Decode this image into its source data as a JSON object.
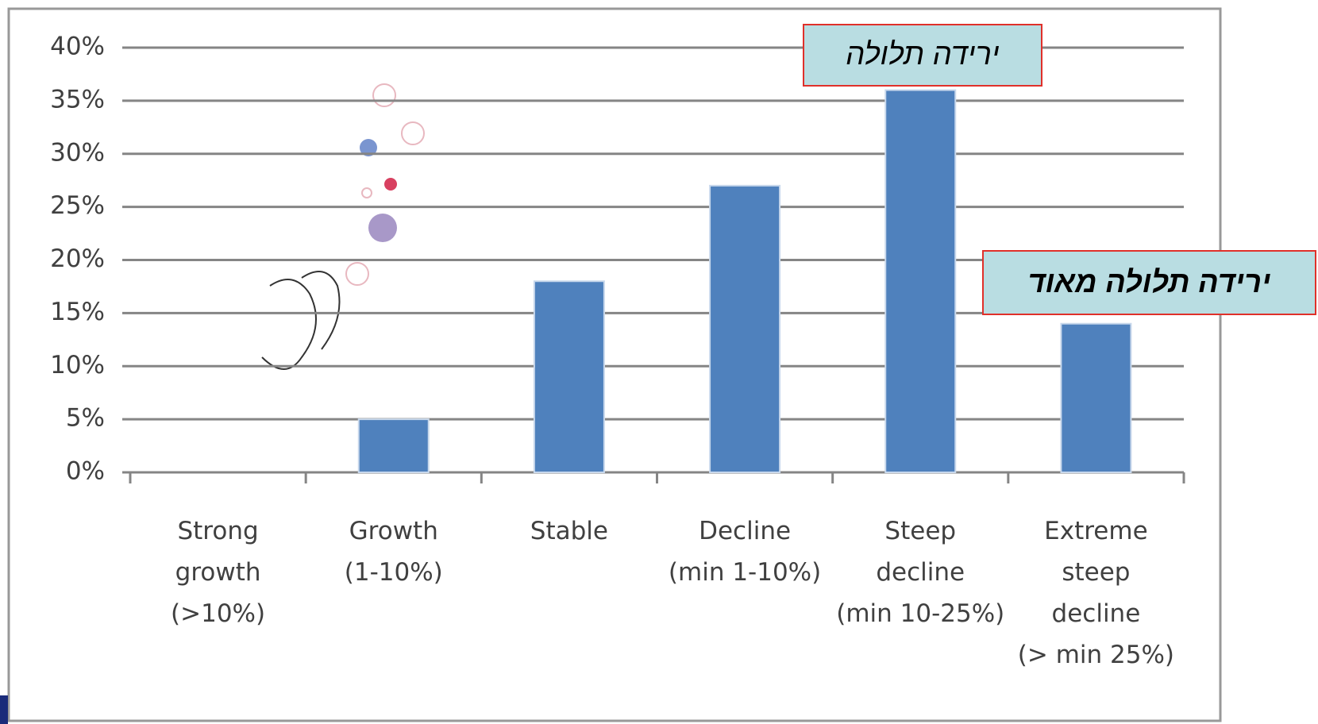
{
  "chart_data": {
    "type": "bar",
    "categories": [
      "Strong\ngrowth\n(>10%)",
      "Growth\n(1-10%)",
      "Stable",
      "Decline\n(min 1-10%)",
      "Steep\ndecline\n(min 10-25%)",
      "Extreme\nsteep\ndecline\n(> min 25%)"
    ],
    "values": [
      0,
      5,
      18,
      27,
      36,
      14
    ],
    "color": "#4f81bd",
    "ylim": [
      0,
      40
    ],
    "yticks": [
      {
        "value": 0,
        "label": "0%"
      },
      {
        "value": 5,
        "label": "5%"
      },
      {
        "value": 10,
        "label": "10%"
      },
      {
        "value": 15,
        "label": "15%"
      },
      {
        "value": 20,
        "label": "20%"
      },
      {
        "value": 25,
        "label": "25%"
      },
      {
        "value": 30,
        "label": "30%"
      },
      {
        "value": 35,
        "label": "35%"
      },
      {
        "value": 40,
        "label": "40%"
      }
    ],
    "grid": true,
    "annotations": [
      "ירידה תלולה",
      "ירידה תלולה מאוד"
    ]
  }
}
